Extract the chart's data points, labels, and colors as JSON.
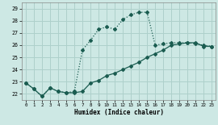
{
  "xlabel": "Humidex (Indice chaleur)",
  "bg_color": "#cde8e4",
  "grid_color": "#aed0cb",
  "line_color": "#1a5c50",
  "dotted_x": [
    0,
    1,
    2,
    3,
    4,
    5,
    6,
    7,
    8,
    9,
    10,
    11,
    12,
    13,
    14,
    15,
    16,
    17,
    18,
    19,
    20,
    21,
    22,
    23
  ],
  "dotted_y": [
    22.9,
    22.4,
    21.8,
    22.5,
    22.2,
    22.1,
    22.2,
    25.6,
    26.4,
    27.3,
    27.5,
    27.3,
    28.1,
    28.5,
    28.7,
    28.7,
    26.0,
    26.1,
    26.2,
    26.2,
    26.2,
    26.1,
    26.0,
    25.9
  ],
  "solid_x": [
    0,
    1,
    2,
    3,
    4,
    5,
    6,
    7,
    8,
    9,
    10,
    11,
    12,
    13,
    14,
    15,
    16,
    17,
    18,
    19,
    20,
    21,
    22,
    23
  ],
  "solid_y": [
    22.9,
    22.4,
    21.8,
    22.5,
    22.2,
    22.1,
    22.1,
    22.2,
    22.9,
    23.1,
    23.5,
    23.7,
    24.0,
    24.3,
    24.6,
    25.0,
    25.3,
    25.6,
    26.0,
    26.1,
    26.2,
    26.2,
    25.9,
    25.9
  ],
  "xlim": [
    -0.5,
    23.5
  ],
  "ylim": [
    21.5,
    29.5
  ],
  "yticks": [
    22,
    23,
    24,
    25,
    26,
    27,
    28,
    29
  ],
  "xticks": [
    0,
    1,
    2,
    3,
    4,
    5,
    6,
    7,
    8,
    9,
    10,
    11,
    12,
    13,
    14,
    15,
    16,
    17,
    18,
    19,
    20,
    21,
    22,
    23
  ]
}
